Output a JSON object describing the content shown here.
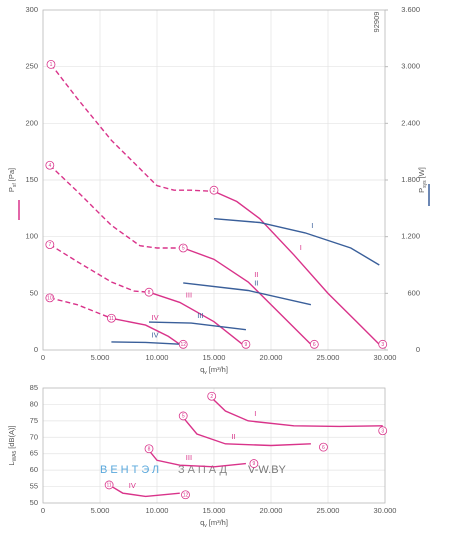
{
  "chart_data": [
    {
      "type": "line",
      "code": "92909",
      "xlabel": {
        "symbol": "q",
        "sub": "v",
        "unit": "[m³/h]"
      },
      "ylabel": {
        "symbol": "P",
        "sub": "sf",
        "unit": "[Pa]"
      },
      "y2label": {
        "symbol": "P",
        "sub": "sys",
        "unit": "[W]"
      },
      "xlim": [
        0,
        30000
      ],
      "xticks": [
        0,
        {
          "value": 5000,
          "label": "5.000"
        },
        {
          "value": 10000,
          "label": "10.000"
        },
        {
          "value": 15000,
          "label": "15.000"
        },
        {
          "value": 20000,
          "label": "20.000"
        },
        {
          "value": 25000,
          "label": "25.000"
        },
        {
          "value": 30000,
          "label": "30.000"
        }
      ],
      "ylim": [
        0,
        300
      ],
      "yticks": [
        0,
        50,
        100,
        150,
        200,
        250,
        300
      ],
      "y2lim": [
        0,
        3600
      ],
      "y2ticks": [
        0,
        600,
        {
          "value": 1200,
          "label": "1.200"
        },
        {
          "value": 1800,
          "label": "1.800"
        },
        {
          "value": 2400,
          "label": "2.400"
        },
        {
          "value": 3000,
          "label": "3.000"
        },
        {
          "value": 3600,
          "label": "3.600"
        }
      ],
      "grid": true,
      "series": [
        {
          "color": "#d9338a",
          "dash": true,
          "x": [
            700,
            3000,
            6000,
            8500,
            10000,
            11500,
            13000,
            15000
          ],
          "values": [
            252,
            222,
            185,
            160,
            145,
            141,
            141,
            140
          ]
        },
        {
          "name": "I",
          "color": "#d9338a",
          "x": [
            15000,
            17000,
            19000,
            22000,
            25000,
            27500,
            29500
          ],
          "values": [
            140,
            131,
            116,
            84,
            50,
            25,
            5
          ]
        },
        {
          "color": "#d9338a",
          "dash": true,
          "x": [
            600,
            3000,
            6000,
            8500,
            10000,
            12300
          ],
          "values": [
            163,
            140,
            110,
            92,
            90,
            90
          ]
        },
        {
          "name": "II",
          "color": "#d9338a",
          "x": [
            12300,
            15000,
            18000,
            21000,
            23500
          ],
          "values": [
            90,
            80,
            60,
            30,
            5
          ]
        },
        {
          "color": "#d9338a",
          "dash": true,
          "x": [
            600,
            3000,
            6000,
            8000,
            9300
          ],
          "values": [
            93,
            78,
            60,
            52,
            51
          ]
        },
        {
          "name": "III",
          "color": "#d9338a",
          "x": [
            9300,
            12000,
            15000,
            17500
          ],
          "values": [
            51,
            42,
            25,
            5
          ]
        },
        {
          "color": "#d9338a",
          "dash": true,
          "x": [
            600,
            3000,
            5000,
            6000
          ],
          "values": [
            46,
            40,
            32,
            28
          ]
        },
        {
          "name": "IV",
          "color": "#d9338a",
          "x": [
            6000,
            9000,
            11000,
            12000
          ],
          "values": [
            28,
            22,
            12,
            5
          ]
        },
        {
          "name": "I",
          "color": "#3a5f9a",
          "axis": "y2",
          "x": [
            15000,
            19000,
            23000,
            27000,
            29500
          ],
          "values": [
            1390,
            1350,
            1240,
            1080,
            900
          ]
        },
        {
          "name": "II",
          "color": "#3a5f9a",
          "axis": "y2",
          "x": [
            12300,
            18000,
            23500
          ],
          "values": [
            710,
            630,
            480
          ]
        },
        {
          "name": "III",
          "color": "#3a5f9a",
          "axis": "y2",
          "x": [
            9300,
            13000,
            17800
          ],
          "values": [
            296,
            285,
            215
          ]
        },
        {
          "name": "IV",
          "color": "#3a5f9a",
          "axis": "y2",
          "x": [
            6000,
            9000,
            12000
          ],
          "values": [
            85,
            80,
            62
          ]
        }
      ],
      "markers": [
        {
          "label": "1",
          "x": 700,
          "y": 252
        },
        {
          "label": "2",
          "x": 15000,
          "y": 141
        },
        {
          "label": "3",
          "x": 29800,
          "y": 5
        },
        {
          "label": "4",
          "x": 600,
          "y": 163
        },
        {
          "label": "5",
          "x": 12300,
          "y": 90
        },
        {
          "label": "6",
          "x": 23800,
          "y": 5
        },
        {
          "label": "7",
          "x": 600,
          "y": 93
        },
        {
          "label": "8",
          "x": 9300,
          "y": 51
        },
        {
          "label": "9",
          "x": 17800,
          "y": 5
        },
        {
          "label": "10",
          "x": 600,
          "y": 46
        },
        {
          "label": "11",
          "x": 6000,
          "y": 28
        },
        {
          "label": "12",
          "x": 12300,
          "y": 5
        }
      ]
    },
    {
      "type": "line",
      "xlabel": {
        "symbol": "q",
        "sub": "v",
        "unit": "[m³/h]"
      },
      "ylabel": {
        "symbol": "L",
        "sub": "WA5",
        "unit": "[dB(A)]"
      },
      "xlim": [
        0,
        30000
      ],
      "xticks": [
        0,
        {
          "value": 5000,
          "label": "5.000"
        },
        {
          "value": 10000,
          "label": "10.000"
        },
        {
          "value": 15000,
          "label": "15.000"
        },
        {
          "value": 20000,
          "label": "20.000"
        },
        {
          "value": 25000,
          "label": "25.000"
        },
        {
          "value": 30000,
          "label": "30.000"
        }
      ],
      "ylim": [
        50,
        85
      ],
      "yticks": [
        50,
        55,
        60,
        65,
        70,
        75,
        80,
        85
      ],
      "grid": true,
      "watermark": [
        "ВЕНТЭЛ",
        "ЗАПАД",
        "V-W.BY"
      ],
      "series": [
        {
          "name": "I",
          "color": "#d9338a",
          "x": [
            14800,
            16000,
            18000,
            22000,
            26000,
            29800
          ],
          "values": [
            82,
            78,
            75,
            73.5,
            73.3,
            73.5
          ]
        },
        {
          "name": "II",
          "color": "#d9338a",
          "x": [
            12300,
            13500,
            16000,
            20000,
            23500
          ],
          "values": [
            76,
            71,
            68,
            67.5,
            68
          ]
        },
        {
          "name": "III",
          "color": "#d9338a",
          "x": [
            9300,
            10000,
            12000,
            15000,
            17800
          ],
          "values": [
            66,
            63,
            61.5,
            61,
            62
          ]
        },
        {
          "name": "IV",
          "color": "#d9338a",
          "x": [
            5800,
            7000,
            9000,
            12000
          ],
          "values": [
            55.5,
            53,
            52,
            53
          ]
        }
      ],
      "markers": [
        {
          "label": "2",
          "x": 14800,
          "y": 82.5
        },
        {
          "label": "3",
          "x": 29800,
          "y": 72
        },
        {
          "label": "5",
          "x": 12300,
          "y": 76.5
        },
        {
          "label": "6",
          "x": 24600,
          "y": 67
        },
        {
          "label": "8",
          "x": 9300,
          "y": 66.5
        },
        {
          "label": "9",
          "x": 18500,
          "y": 62
        },
        {
          "label": "11",
          "x": 5800,
          "y": 55.5
        },
        {
          "label": "12",
          "x": 12500,
          "y": 52.5
        }
      ]
    }
  ]
}
